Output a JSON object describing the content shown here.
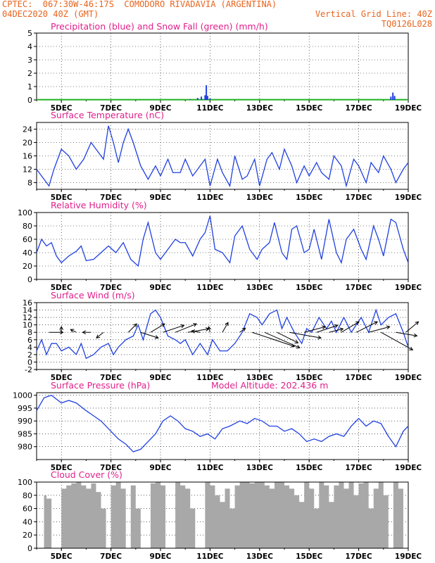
{
  "header": {
    "line1_left": "CPTEC:  067:30W-46:17S  COMODORO RIVADAVIA (ARGENTINA)",
    "line2_left": "04DEC2020 40Z (GMT)",
    "line2_right": "Vertical Grid Line: 40Z",
    "line3_right": "TQ0126L028"
  },
  "colors": {
    "header_text": "#e8641e",
    "panel_title": "#e0208c",
    "line": "#2040e0",
    "snow": "#20b020",
    "cloud": "#a8a8a8",
    "axis": "#000000"
  },
  "x_axis": {
    "tick_labels": [
      "5DEC",
      "7DEC",
      "9DEC",
      "11DEC",
      "13DEC",
      "15DEC",
      "17DEC",
      "19DEC"
    ],
    "tick_days": [
      5,
      7,
      9,
      11,
      13,
      15,
      17,
      19
    ],
    "range_days": [
      4.0,
      19.0
    ]
  },
  "chart_data": [
    {
      "type": "bar",
      "title": "Precipitation (blue) and Snow Fall (green) (mm/h)",
      "ylim": [
        0,
        5
      ],
      "yticks": [
        "0",
        "1",
        "2",
        "3",
        "4",
        "5"
      ],
      "series": [
        {
          "name": "Precipitation",
          "color": "#2040e0",
          "points": [
            [
              10.2,
              0.05
            ],
            [
              10.5,
              0.15
            ],
            [
              10.65,
              0.25
            ],
            [
              10.8,
              0.35
            ],
            [
              10.85,
              1.1
            ],
            [
              10.9,
              0.3
            ],
            [
              11.0,
              0.1
            ],
            [
              18.3,
              0.25
            ],
            [
              18.38,
              0.55
            ],
            [
              18.45,
              0.3
            ]
          ]
        },
        {
          "name": "Snow Fall",
          "color": "#20b020",
          "flat_value": 0.02
        }
      ]
    },
    {
      "type": "line",
      "title": "Surface Temperature (nC)",
      "ylim": [
        6,
        26
      ],
      "yticks": [
        "8",
        "12",
        "16",
        "20",
        "24"
      ],
      "x": [
        4.0,
        4.3,
        4.5,
        4.7,
        5.0,
        5.3,
        5.6,
        5.9,
        6.2,
        6.5,
        6.7,
        6.9,
        7.1,
        7.3,
        7.5,
        7.7,
        7.9,
        8.2,
        8.5,
        8.8,
        9.0,
        9.3,
        9.5,
        9.8,
        10.0,
        10.3,
        10.5,
        10.8,
        11.0,
        11.3,
        11.5,
        11.8,
        12.0,
        12.3,
        12.5,
        12.8,
        13.0,
        13.3,
        13.5,
        13.8,
        14.0,
        14.3,
        14.5,
        14.8,
        15.0,
        15.3,
        15.5,
        15.8,
        16.0,
        16.3,
        16.5,
        16.8,
        17.0,
        17.3,
        17.5,
        17.8,
        18.0,
        18.3,
        18.5,
        18.8,
        19.0
      ],
      "y": [
        12,
        9,
        7,
        12,
        18,
        16,
        12,
        15,
        20,
        17,
        15,
        25,
        20,
        14,
        20,
        24,
        20,
        13,
        9,
        13,
        10,
        15,
        11,
        11,
        15,
        10,
        12,
        15,
        7,
        15,
        11,
        7,
        16,
        9,
        10,
        15,
        7,
        15,
        17,
        12,
        18,
        13,
        8,
        13,
        10,
        14,
        11,
        9,
        16,
        13,
        7,
        15,
        13,
        8,
        14,
        11,
        16,
        12,
        8,
        12,
        14
      ]
    },
    {
      "type": "line",
      "title": "Relative Humidity (%)",
      "ylim": [
        0,
        100
      ],
      "yticks": [
        "0",
        "20",
        "40",
        "60",
        "80",
        "100"
      ],
      "x": [
        4.0,
        4.2,
        4.4,
        4.6,
        4.8,
        5.0,
        5.3,
        5.6,
        5.8,
        6.0,
        6.3,
        6.6,
        6.9,
        7.2,
        7.5,
        7.8,
        8.1,
        8.3,
        8.5,
        8.8,
        9.0,
        9.3,
        9.6,
        9.8,
        10.0,
        10.3,
        10.6,
        10.8,
        11.0,
        11.2,
        11.5,
        11.8,
        12.0,
        12.3,
        12.6,
        12.9,
        13.1,
        13.4,
        13.6,
        13.9,
        14.1,
        14.3,
        14.5,
        14.8,
        15.0,
        15.2,
        15.5,
        15.8,
        16.1,
        16.3,
        16.5,
        16.8,
        17.1,
        17.3,
        17.6,
        17.8,
        18.0,
        18.3,
        18.5,
        18.8,
        19.0
      ],
      "y": [
        40,
        60,
        50,
        55,
        35,
        25,
        35,
        42,
        50,
        28,
        30,
        40,
        50,
        40,
        55,
        30,
        20,
        60,
        85,
        40,
        30,
        45,
        60,
        55,
        55,
        35,
        60,
        70,
        95,
        45,
        40,
        25,
        65,
        80,
        45,
        30,
        45,
        55,
        85,
        40,
        30,
        75,
        80,
        40,
        45,
        75,
        30,
        90,
        40,
        25,
        60,
        75,
        45,
        30,
        80,
        60,
        35,
        90,
        85,
        45,
        25
      ]
    },
    {
      "type": "line",
      "title": "Surface Wind (m/s)",
      "ylim": [
        -2,
        16
      ],
      "yticks": [
        "-2",
        "0",
        "2",
        "4",
        "6",
        "8",
        "10",
        "12",
        "14",
        "16"
      ],
      "x": [
        4.0,
        4.2,
        4.4,
        4.6,
        4.8,
        5.0,
        5.3,
        5.6,
        5.8,
        6.0,
        6.3,
        6.6,
        6.9,
        7.1,
        7.3,
        7.6,
        7.9,
        8.1,
        8.3,
        8.6,
        8.8,
        9.0,
        9.3,
        9.6,
        9.8,
        10.0,
        10.3,
        10.6,
        10.9,
        11.1,
        11.4,
        11.7,
        12.0,
        12.3,
        12.6,
        12.9,
        13.1,
        13.4,
        13.7,
        13.9,
        14.1,
        14.4,
        14.7,
        14.9,
        15.1,
        15.4,
        15.7,
        15.9,
        16.1,
        16.4,
        16.7,
        16.9,
        17.1,
        17.4,
        17.7,
        17.9,
        18.2,
        18.5,
        18.8,
        19.0
      ],
      "y": [
        3,
        6,
        2,
        5,
        5,
        3,
        4,
        2,
        5,
        1,
        2,
        4,
        5,
        2,
        4,
        6,
        7,
        10,
        6,
        13,
        14,
        12,
        7,
        6,
        5,
        6,
        2,
        5,
        2,
        6,
        3,
        3,
        5,
        8,
        13,
        12,
        10,
        13,
        14,
        9,
        12,
        8,
        5,
        9,
        8,
        12,
        9,
        11,
        8,
        12,
        8,
        10,
        12,
        8,
        14,
        10,
        12,
        13,
        8,
        4
      ],
      "arrows": [
        {
          "day": 4.5,
          "dx": 20,
          "dy": 0
        },
        {
          "day": 5.0,
          "dx": 0,
          "dy": -8
        },
        {
          "day": 5.6,
          "dx": -8,
          "dy": -4
        },
        {
          "day": 6.2,
          "dx": -12,
          "dy": 0
        },
        {
          "day": 6.7,
          "dx": -10,
          "dy": 8
        },
        {
          "day": 7.7,
          "dx": 12,
          "dy": -12
        },
        {
          "day": 8.2,
          "dx": 25,
          "dy": 8
        },
        {
          "day": 8.6,
          "dx": 20,
          "dy": -12
        },
        {
          "day": 9.1,
          "dx": 30,
          "dy": -10
        },
        {
          "day": 9.6,
          "dx": 30,
          "dy": -12
        },
        {
          "day": 10.1,
          "dx": 30,
          "dy": -5
        },
        {
          "day": 10.6,
          "dx": -12,
          "dy": -2
        },
        {
          "day": 11.0,
          "dx": -2,
          "dy": -8
        },
        {
          "day": 11.5,
          "dx": 8,
          "dy": -14
        },
        {
          "day": 12.2,
          "dx": 8,
          "dy": -6
        },
        {
          "day": 12.7,
          "dx": 60,
          "dy": 20
        },
        {
          "day": 13.2,
          "dx": 50,
          "dy": 22
        },
        {
          "day": 13.7,
          "dx": 30,
          "dy": 15
        },
        {
          "day": 14.2,
          "dx": 45,
          "dy": 8
        },
        {
          "day": 14.8,
          "dx": 30,
          "dy": -8
        },
        {
          "day": 15.3,
          "dx": 30,
          "dy": -10
        },
        {
          "day": 15.8,
          "dx": 20,
          "dy": -5
        },
        {
          "day": 16.3,
          "dx": 25,
          "dy": -15
        },
        {
          "day": 16.9,
          "dx": 30,
          "dy": -15
        },
        {
          "day": 17.4,
          "dx": 30,
          "dy": -8
        },
        {
          "day": 17.9,
          "dx": 45,
          "dy": 25
        },
        {
          "day": 18.5,
          "dx": 30,
          "dy": 5
        },
        {
          "day": 18.9,
          "dx": 18,
          "dy": -15
        }
      ]
    },
    {
      "type": "line",
      "title": "Surface Pressure (hPa)",
      "subtitle": "Model Altitude: 202.436 m",
      "ylim": [
        975,
        1001
      ],
      "yticks": [
        "980",
        "985",
        "990",
        "995",
        "1000"
      ],
      "x": [
        4.0,
        4.3,
        4.6,
        5.0,
        5.3,
        5.6,
        6.0,
        6.3,
        6.6,
        7.0,
        7.3,
        7.6,
        7.9,
        8.2,
        8.5,
        8.8,
        9.1,
        9.4,
        9.7,
        10.0,
        10.3,
        10.6,
        10.9,
        11.2,
        11.5,
        11.8,
        12.2,
        12.5,
        12.8,
        13.1,
        13.4,
        13.7,
        14.0,
        14.3,
        14.6,
        14.9,
        15.2,
        15.5,
        15.8,
        16.1,
        16.4,
        16.7,
        17.0,
        17.3,
        17.6,
        17.9,
        18.2,
        18.5,
        18.8,
        19.0
      ],
      "y": [
        994,
        999,
        1000,
        997,
        998,
        997,
        994,
        992,
        990,
        986,
        983,
        981,
        978,
        979,
        982,
        985,
        990,
        992,
        990,
        987,
        986,
        984,
        985,
        983,
        987,
        988,
        990,
        989,
        991,
        990,
        988,
        988,
        986,
        987,
        985,
        982,
        983,
        982,
        984,
        985,
        984,
        988,
        991,
        988,
        990,
        989,
        984,
        980,
        986,
        988
      ]
    },
    {
      "type": "area",
      "title": "Cloud Cover (%)",
      "ylim": [
        0,
        100
      ],
      "yticks": [
        "0",
        "20",
        "40",
        "60",
        "80",
        "100"
      ],
      "x": [
        4.0,
        4.2,
        4.3,
        4.4,
        4.6,
        4.8,
        5.0,
        5.2,
        5.4,
        5.6,
        5.8,
        6.0,
        6.2,
        6.4,
        6.6,
        6.8,
        7.0,
        7.2,
        7.4,
        7.6,
        7.8,
        8.0,
        8.2,
        8.4,
        8.6,
        8.8,
        9.0,
        9.2,
        9.4,
        9.6,
        9.8,
        10.0,
        10.2,
        10.4,
        10.6,
        10.8,
        11.0,
        11.2,
        11.4,
        11.6,
        11.8,
        12.0,
        12.2,
        12.4,
        12.6,
        12.8,
        13.0,
        13.2,
        13.4,
        13.6,
        13.8,
        14.0,
        14.2,
        14.4,
        14.6,
        14.8,
        15.0,
        15.2,
        15.4,
        15.6,
        15.8,
        16.0,
        16.2,
        16.4,
        16.6,
        16.8,
        17.0,
        17.2,
        17.4,
        17.6,
        17.8,
        18.0,
        18.2,
        18.4,
        18.6,
        18.8,
        19.0
      ],
      "y": [
        0,
        0,
        80,
        75,
        0,
        0,
        90,
        95,
        98,
        100,
        95,
        90,
        98,
        85,
        60,
        0,
        95,
        100,
        90,
        0,
        95,
        60,
        0,
        0,
        98,
        100,
        95,
        0,
        0,
        100,
        95,
        90,
        60,
        0,
        0,
        100,
        95,
        80,
        70,
        90,
        60,
        95,
        100,
        100,
        98,
        100,
        100,
        95,
        90,
        100,
        100,
        95,
        90,
        80,
        70,
        100,
        90,
        60,
        100,
        95,
        70,
        95,
        100,
        90,
        100,
        80,
        98,
        100,
        60,
        90,
        100,
        80,
        0,
        100,
        90,
        0,
        20
      ]
    }
  ]
}
